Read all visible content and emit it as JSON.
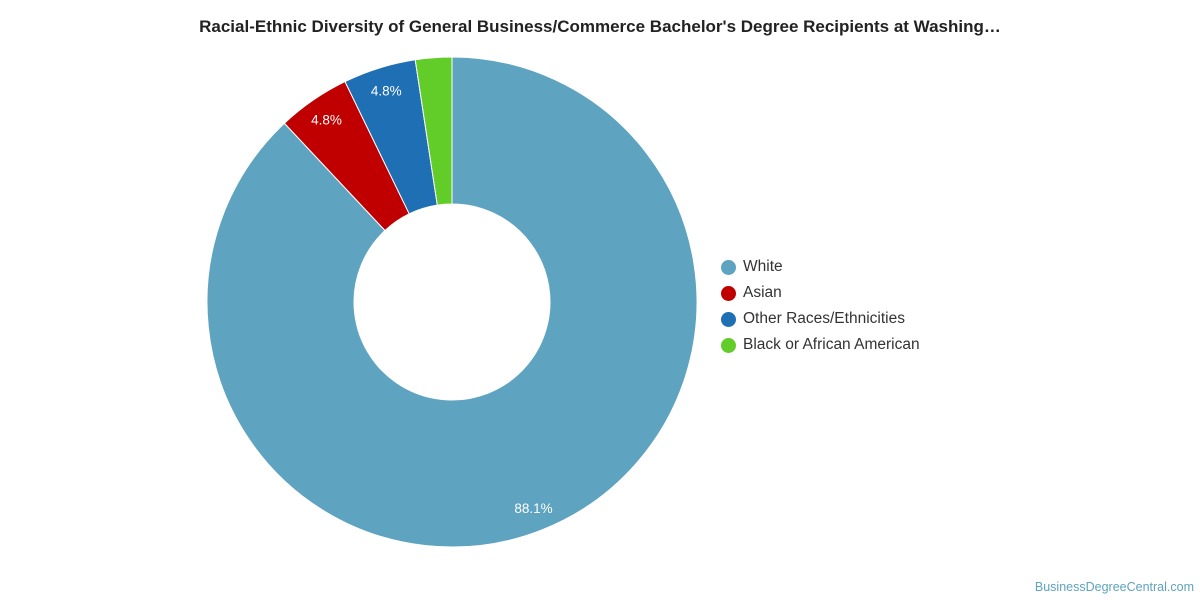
{
  "chart_data": {
    "type": "pie",
    "title": "Racial-Ethnic Diversity of General Business/Commerce Bachelor's Degree Recipients at Washing…",
    "categories": [
      "White",
      "Asian",
      "Other Races/Ethnicities",
      "Black or African American"
    ],
    "values": [
      88.1,
      4.8,
      4.8,
      2.4
    ],
    "data_labels": [
      "88.1%",
      "4.8%",
      "4.8%",
      ""
    ],
    "colors": [
      "#5ea3bf",
      "#c00000",
      "#1f6fb5",
      "#62cc28"
    ],
    "donut": true,
    "legend_position": "right"
  },
  "legend": {
    "items": [
      {
        "label": "White",
        "color": "#5ea3bf"
      },
      {
        "label": "Asian",
        "color": "#c00000"
      },
      {
        "label": "Other Races/Ethnicities",
        "color": "#1f6fb5"
      },
      {
        "label": "Black or African American",
        "color": "#62cc28"
      }
    ]
  },
  "credit": "BusinessDegreeCentral.com"
}
